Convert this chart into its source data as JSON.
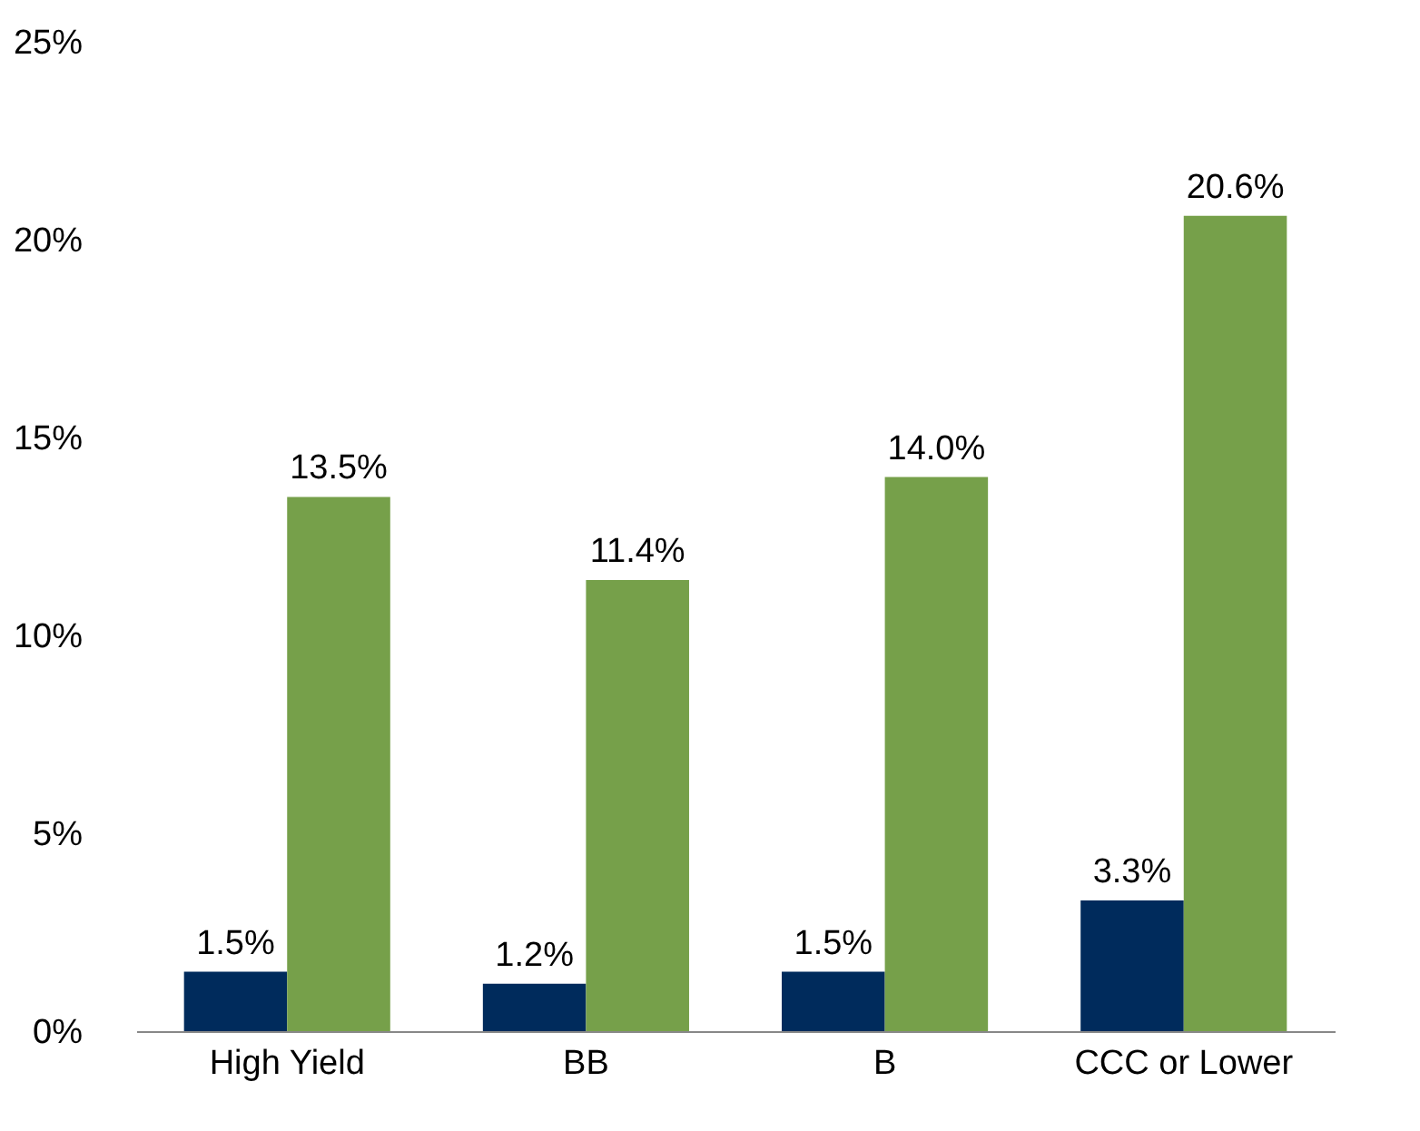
{
  "chart_data": {
    "type": "bar",
    "categories": [
      "High Yield",
      "BB",
      "B",
      "CCC or Lower"
    ],
    "series": [
      {
        "color": "#002b5c",
        "values": [
          1.5,
          1.2,
          1.5,
          3.3
        ],
        "value_labels": [
          "1.5%",
          "1.2%",
          "1.5%",
          "3.3%"
        ]
      },
      {
        "color": "#76a04a",
        "values": [
          13.5,
          11.4,
          14.0,
          20.6
        ],
        "value_labels": [
          "13.5%",
          "11.4%",
          "14.0%",
          "20.6%"
        ]
      }
    ],
    "ylim": [
      0,
      25
    ],
    "yticks": [
      {
        "value": 0,
        "label": "0%"
      },
      {
        "value": 5,
        "label": "5%"
      },
      {
        "value": 10,
        "label": "10%"
      },
      {
        "value": 15,
        "label": "15%"
      },
      {
        "value": 20,
        "label": "20%"
      },
      {
        "value": 25,
        "label": "25%"
      }
    ],
    "legend": false
  }
}
